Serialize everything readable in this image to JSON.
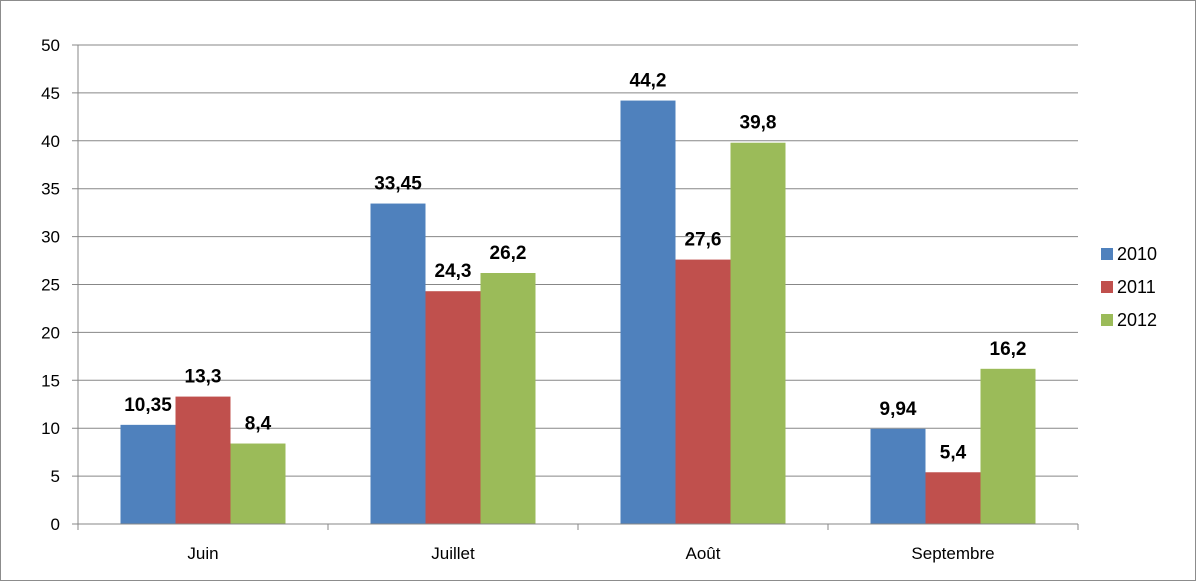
{
  "chart_data": {
    "type": "bar",
    "title": "",
    "xlabel": "",
    "ylabel": "",
    "categories": [
      "Juin",
      "Juillet",
      "Août",
      "Septembre"
    ],
    "series": [
      {
        "name": "2010",
        "color": "#4f81bd",
        "values": [
          10.35,
          33.45,
          44.2,
          9.94
        ],
        "labels": [
          "10,35",
          "33,45",
          "44,2",
          "9,94"
        ]
      },
      {
        "name": "2011",
        "color": "#c0504d",
        "values": [
          13.3,
          24.3,
          27.6,
          5.4
        ],
        "labels": [
          "13,3",
          "24,3",
          "27,6",
          "5,4"
        ]
      },
      {
        "name": "2012",
        "color": "#9bbb59",
        "values": [
          8.4,
          26.2,
          39.8,
          16.2
        ],
        "labels": [
          "8,4",
          "26,2",
          "39,8",
          "16,2"
        ]
      }
    ],
    "ylim": [
      0,
      50
    ],
    "yticks": [
      0,
      5,
      10,
      15,
      20,
      25,
      30,
      35,
      40,
      45,
      50
    ],
    "grid": true,
    "legend": "right"
  }
}
